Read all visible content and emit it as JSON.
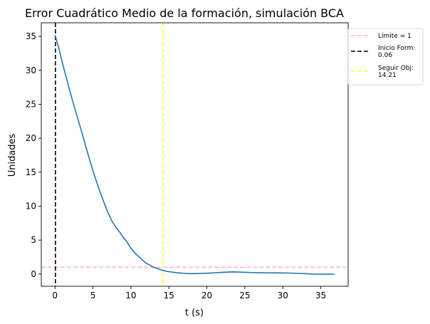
{
  "chart_data": {
    "type": "line",
    "title": "Error Cuadrático Medio de la formación, simulación BCA",
    "xlabel": "t (s)",
    "ylabel": "Unidades",
    "xlim": [
      -1.8,
      38.6
    ],
    "ylim": [
      -1.8,
      37.0
    ],
    "xticks": [
      0,
      5,
      10,
      15,
      20,
      25,
      30,
      35
    ],
    "yticks": [
      0,
      5,
      10,
      15,
      20,
      25,
      30,
      35
    ],
    "grid": false,
    "legend_position": "outside-right",
    "series": [
      {
        "color": "#1f77b4",
        "x": [
          0,
          0.5,
          1,
          1.5,
          2,
          2.5,
          3,
          3.5,
          4,
          4.5,
          5,
          5.5,
          6,
          6.5,
          7,
          7.5,
          8,
          8.5,
          9,
          9.5,
          10,
          10.5,
          11,
          11.5,
          12,
          12.5,
          13,
          13.5,
          14,
          14.5,
          15,
          16,
          17,
          18,
          19,
          20,
          21,
          22,
          23,
          23.5,
          24,
          25,
          26,
          27,
          28,
          29,
          30,
          31,
          32,
          33,
          34,
          35,
          36,
          36.8
        ],
        "y": [
          35.2,
          33.3,
          31.0,
          28.9,
          26.8,
          24.8,
          22.9,
          21.0,
          19.0,
          17.1,
          15.2,
          13.5,
          11.9,
          10.4,
          9.0,
          7.8,
          6.9,
          6.2,
          5.4,
          4.7,
          3.8,
          3.1,
          2.6,
          2.1,
          1.6,
          1.3,
          1.0,
          0.8,
          0.6,
          0.45,
          0.35,
          0.2,
          0.1,
          0.05,
          0.08,
          0.12,
          0.18,
          0.25,
          0.3,
          0.32,
          0.3,
          0.25,
          0.22,
          0.2,
          0.18,
          0.17,
          0.16,
          0.14,
          0.1,
          0.05,
          0.0,
          -0.02,
          -0.02,
          -0.03
        ]
      }
    ],
    "reference_lines": [
      {
        "orientation": "horizontal",
        "value": 1,
        "color": "#ffb6c1",
        "style": "dashed",
        "label": "Límite = 1"
      },
      {
        "orientation": "vertical",
        "value": 0.06,
        "color": "#000000",
        "style": "dashed",
        "label": "Inicio Form:\n0.06"
      },
      {
        "orientation": "vertical",
        "value": 14.21,
        "color": "#ffff33",
        "style": "dashed",
        "label": "Seguir Obj:\n14.21"
      }
    ]
  }
}
